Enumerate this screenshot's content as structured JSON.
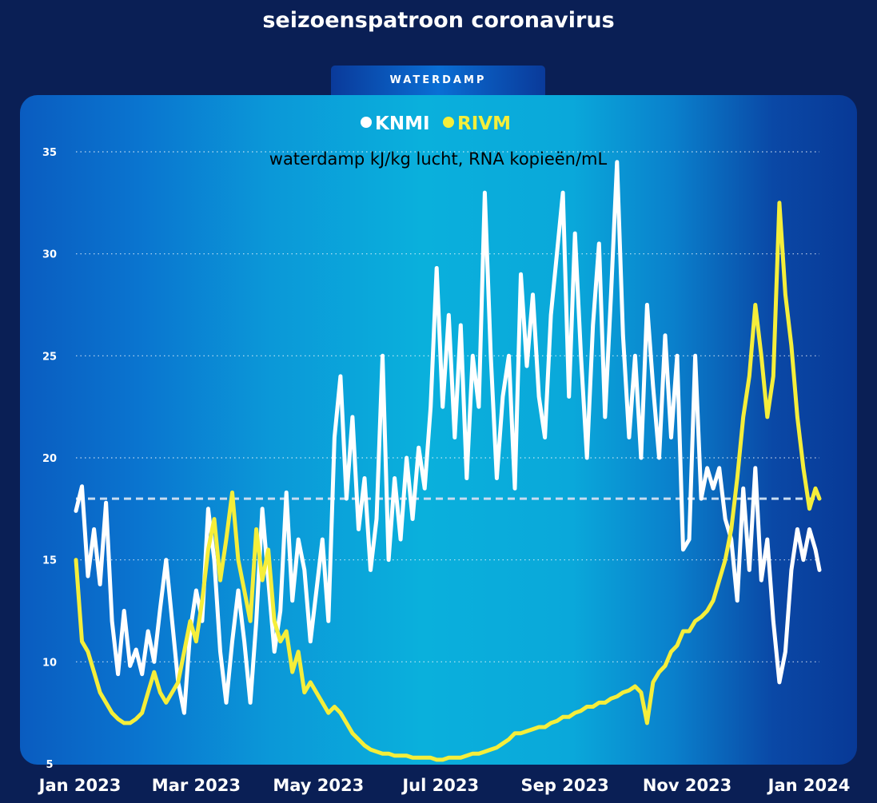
{
  "title": "seizoenspatroon coronavirus",
  "tab_label": "WATERDAMP",
  "colors": {
    "page_bg": "#0a1f55",
    "knmi": "#ffffff",
    "rivm": "#f5ee3a",
    "reference_line": "#c8dcf0"
  },
  "chart_data": {
    "type": "line",
    "subtitle": "waterdamp kJ/kg lucht, RNA kopieën/mL",
    "ylim": [
      5,
      35
    ],
    "y_ticks": [
      "5",
      "10",
      "15",
      "20",
      "25",
      "30",
      "35"
    ],
    "x_tick_labels": [
      "Jan 2023",
      "Mar 2023",
      "May 2023",
      "Jul 2023",
      "Sep 2023",
      "Nov 2023",
      "Jan 2024"
    ],
    "x_tick_dates": [
      "2023-01-01",
      "2023-03-01",
      "2023-05-01",
      "2023-07-01",
      "2023-09-01",
      "2023-11-01",
      "2024-01-01"
    ],
    "x_range": [
      "2022-12-31",
      "2024-01-06"
    ],
    "grid": true,
    "legend_position": "top-center",
    "reference_line": 18,
    "series": [
      {
        "name": "KNMI",
        "color": "#ffffff",
        "points": [
          [
            "2022-12-31",
            17.4
          ],
          [
            "2023-01-03",
            18.6
          ],
          [
            "2023-01-06",
            14.2
          ],
          [
            "2023-01-09",
            16.5
          ],
          [
            "2023-01-12",
            13.8
          ],
          [
            "2023-01-15",
            17.8
          ],
          [
            "2023-01-18",
            12.0
          ],
          [
            "2023-01-21",
            9.4
          ],
          [
            "2023-01-24",
            12.5
          ],
          [
            "2023-01-27",
            9.8
          ],
          [
            "2023-01-30",
            10.6
          ],
          [
            "2023-02-02",
            9.4
          ],
          [
            "2023-02-05",
            11.5
          ],
          [
            "2023-02-08",
            10.0
          ],
          [
            "2023-02-11",
            12.6
          ],
          [
            "2023-02-14",
            15.0
          ],
          [
            "2023-02-17",
            12.0
          ],
          [
            "2023-02-20",
            9.0
          ],
          [
            "2023-02-23",
            7.5
          ],
          [
            "2023-02-26",
            11.5
          ],
          [
            "2023-03-01",
            13.5
          ],
          [
            "2023-03-04",
            12.0
          ],
          [
            "2023-03-07",
            17.5
          ],
          [
            "2023-03-10",
            15.0
          ],
          [
            "2023-03-13",
            10.5
          ],
          [
            "2023-03-16",
            8.0
          ],
          [
            "2023-03-19",
            11.0
          ],
          [
            "2023-03-22",
            13.5
          ],
          [
            "2023-03-25",
            11.0
          ],
          [
            "2023-03-28",
            8.0
          ],
          [
            "2023-03-31",
            12.0
          ],
          [
            "2023-04-03",
            17.5
          ],
          [
            "2023-04-06",
            14.0
          ],
          [
            "2023-04-09",
            10.5
          ],
          [
            "2023-04-12",
            12.5
          ],
          [
            "2023-04-15",
            18.3
          ],
          [
            "2023-04-18",
            13.0
          ],
          [
            "2023-04-21",
            16.0
          ],
          [
            "2023-04-24",
            14.5
          ],
          [
            "2023-04-27",
            11.0
          ],
          [
            "2023-04-30",
            13.5
          ],
          [
            "2023-05-03",
            16.0
          ],
          [
            "2023-05-06",
            12.0
          ],
          [
            "2023-05-09",
            21.0
          ],
          [
            "2023-05-12",
            24.0
          ],
          [
            "2023-05-15",
            18.0
          ],
          [
            "2023-05-18",
            22.0
          ],
          [
            "2023-05-21",
            16.5
          ],
          [
            "2023-05-24",
            19.0
          ],
          [
            "2023-05-27",
            14.5
          ],
          [
            "2023-05-30",
            17.0
          ],
          [
            "2023-06-02",
            25.0
          ],
          [
            "2023-06-05",
            15.0
          ],
          [
            "2023-06-08",
            19.0
          ],
          [
            "2023-06-11",
            16.0
          ],
          [
            "2023-06-14",
            20.0
          ],
          [
            "2023-06-17",
            17.0
          ],
          [
            "2023-06-20",
            20.5
          ],
          [
            "2023-06-23",
            18.5
          ],
          [
            "2023-06-26",
            22.5
          ],
          [
            "2023-06-29",
            29.3
          ],
          [
            "2023-07-02",
            22.5
          ],
          [
            "2023-07-05",
            27.0
          ],
          [
            "2023-07-08",
            21.0
          ],
          [
            "2023-07-11",
            26.5
          ],
          [
            "2023-07-14",
            19.0
          ],
          [
            "2023-07-17",
            25.0
          ],
          [
            "2023-07-20",
            22.5
          ],
          [
            "2023-07-23",
            33.0
          ],
          [
            "2023-07-26",
            25.0
          ],
          [
            "2023-07-29",
            19.0
          ],
          [
            "2023-08-01",
            23.0
          ],
          [
            "2023-08-04",
            25.0
          ],
          [
            "2023-08-07",
            18.5
          ],
          [
            "2023-08-10",
            29.0
          ],
          [
            "2023-08-13",
            24.5
          ],
          [
            "2023-08-16",
            28.0
          ],
          [
            "2023-08-19",
            23.0
          ],
          [
            "2023-08-22",
            21.0
          ],
          [
            "2023-08-25",
            27.0
          ],
          [
            "2023-08-28",
            30.0
          ],
          [
            "2023-08-31",
            33.0
          ],
          [
            "2023-09-03",
            23.0
          ],
          [
            "2023-09-06",
            31.0
          ],
          [
            "2023-09-09",
            25.0
          ],
          [
            "2023-09-12",
            20.0
          ],
          [
            "2023-09-15",
            26.5
          ],
          [
            "2023-09-18",
            30.5
          ],
          [
            "2023-09-21",
            22.0
          ],
          [
            "2023-09-24",
            28.0
          ],
          [
            "2023-09-27",
            34.5
          ],
          [
            "2023-09-30",
            26.0
          ],
          [
            "2023-10-03",
            21.0
          ],
          [
            "2023-10-06",
            25.0
          ],
          [
            "2023-10-09",
            20.0
          ],
          [
            "2023-10-12",
            27.5
          ],
          [
            "2023-10-15",
            23.5
          ],
          [
            "2023-10-18",
            20.0
          ],
          [
            "2023-10-21",
            26.0
          ],
          [
            "2023-10-24",
            21.0
          ],
          [
            "2023-10-27",
            25.0
          ],
          [
            "2023-10-30",
            15.5
          ],
          [
            "2023-11-02",
            16.0
          ],
          [
            "2023-11-05",
            25.0
          ],
          [
            "2023-11-08",
            18.0
          ],
          [
            "2023-11-11",
            19.5
          ],
          [
            "2023-11-14",
            18.5
          ],
          [
            "2023-11-17",
            19.5
          ],
          [
            "2023-11-20",
            17.0
          ],
          [
            "2023-11-23",
            16.0
          ],
          [
            "2023-11-26",
            13.0
          ],
          [
            "2023-11-29",
            18.5
          ],
          [
            "2023-12-02",
            14.5
          ],
          [
            "2023-12-05",
            19.5
          ],
          [
            "2023-12-08",
            14.0
          ],
          [
            "2023-12-11",
            16.0
          ],
          [
            "2023-12-14",
            12.0
          ],
          [
            "2023-12-17",
            9.0
          ],
          [
            "2023-12-20",
            10.5
          ],
          [
            "2023-12-23",
            14.5
          ],
          [
            "2023-12-26",
            16.5
          ],
          [
            "2023-12-29",
            15.0
          ],
          [
            "2024-01-01",
            16.5
          ],
          [
            "2024-01-04",
            15.5
          ],
          [
            "2024-01-06",
            14.5
          ]
        ]
      },
      {
        "name": "RIVM",
        "color": "#f5ee3a",
        "points": [
          [
            "2022-12-31",
            15.0
          ],
          [
            "2023-01-03",
            11.0
          ],
          [
            "2023-01-06",
            10.5
          ],
          [
            "2023-01-09",
            9.5
          ],
          [
            "2023-01-12",
            8.5
          ],
          [
            "2023-01-15",
            8.0
          ],
          [
            "2023-01-18",
            7.5
          ],
          [
            "2023-01-21",
            7.2
          ],
          [
            "2023-01-24",
            7.0
          ],
          [
            "2023-01-27",
            7.0
          ],
          [
            "2023-01-30",
            7.2
          ],
          [
            "2023-02-02",
            7.5
          ],
          [
            "2023-02-05",
            8.5
          ],
          [
            "2023-02-08",
            9.5
          ],
          [
            "2023-02-11",
            8.5
          ],
          [
            "2023-02-14",
            8.0
          ],
          [
            "2023-02-17",
            8.5
          ],
          [
            "2023-02-20",
            9.0
          ],
          [
            "2023-02-23",
            10.5
          ],
          [
            "2023-02-26",
            12.0
          ],
          [
            "2023-03-01",
            11.0
          ],
          [
            "2023-03-04",
            13.0
          ],
          [
            "2023-03-07",
            15.5
          ],
          [
            "2023-03-10",
            17.0
          ],
          [
            "2023-03-13",
            14.0
          ],
          [
            "2023-03-16",
            16.0
          ],
          [
            "2023-03-19",
            18.3
          ],
          [
            "2023-03-22",
            15.0
          ],
          [
            "2023-03-25",
            13.5
          ],
          [
            "2023-03-28",
            12.0
          ],
          [
            "2023-03-31",
            16.5
          ],
          [
            "2023-04-03",
            14.0
          ],
          [
            "2023-04-06",
            15.5
          ],
          [
            "2023-04-09",
            12.0
          ],
          [
            "2023-04-12",
            11.0
          ],
          [
            "2023-04-15",
            11.5
          ],
          [
            "2023-04-18",
            9.5
          ],
          [
            "2023-04-21",
            10.5
          ],
          [
            "2023-04-24",
            8.5
          ],
          [
            "2023-04-27",
            9.0
          ],
          [
            "2023-04-30",
            8.5
          ],
          [
            "2023-05-03",
            8.0
          ],
          [
            "2023-05-06",
            7.5
          ],
          [
            "2023-05-09",
            7.8
          ],
          [
            "2023-05-12",
            7.5
          ],
          [
            "2023-05-15",
            7.0
          ],
          [
            "2023-05-18",
            6.5
          ],
          [
            "2023-05-21",
            6.2
          ],
          [
            "2023-05-24",
            5.9
          ],
          [
            "2023-05-27",
            5.7
          ],
          [
            "2023-05-30",
            5.6
          ],
          [
            "2023-06-02",
            5.5
          ],
          [
            "2023-06-05",
            5.5
          ],
          [
            "2023-06-08",
            5.4
          ],
          [
            "2023-06-11",
            5.4
          ],
          [
            "2023-06-14",
            5.4
          ],
          [
            "2023-06-17",
            5.3
          ],
          [
            "2023-06-20",
            5.3
          ],
          [
            "2023-06-23",
            5.3
          ],
          [
            "2023-06-26",
            5.3
          ],
          [
            "2023-06-29",
            5.2
          ],
          [
            "2023-07-02",
            5.2
          ],
          [
            "2023-07-05",
            5.3
          ],
          [
            "2023-07-08",
            5.3
          ],
          [
            "2023-07-11",
            5.3
          ],
          [
            "2023-07-14",
            5.4
          ],
          [
            "2023-07-17",
            5.5
          ],
          [
            "2023-07-20",
            5.5
          ],
          [
            "2023-07-23",
            5.6
          ],
          [
            "2023-07-26",
            5.7
          ],
          [
            "2023-07-29",
            5.8
          ],
          [
            "2023-08-01",
            6.0
          ],
          [
            "2023-08-04",
            6.2
          ],
          [
            "2023-08-07",
            6.5
          ],
          [
            "2023-08-10",
            6.5
          ],
          [
            "2023-08-13",
            6.6
          ],
          [
            "2023-08-16",
            6.7
          ],
          [
            "2023-08-19",
            6.8
          ],
          [
            "2023-08-22",
            6.8
          ],
          [
            "2023-08-25",
            7.0
          ],
          [
            "2023-08-28",
            7.1
          ],
          [
            "2023-08-31",
            7.3
          ],
          [
            "2023-09-03",
            7.3
          ],
          [
            "2023-09-06",
            7.5
          ],
          [
            "2023-09-09",
            7.6
          ],
          [
            "2023-09-12",
            7.8
          ],
          [
            "2023-09-15",
            7.8
          ],
          [
            "2023-09-18",
            8.0
          ],
          [
            "2023-09-21",
            8.0
          ],
          [
            "2023-09-24",
            8.2
          ],
          [
            "2023-09-27",
            8.3
          ],
          [
            "2023-09-30",
            8.5
          ],
          [
            "2023-10-03",
            8.6
          ],
          [
            "2023-10-06",
            8.8
          ],
          [
            "2023-10-09",
            8.5
          ],
          [
            "2023-10-12",
            7.0
          ],
          [
            "2023-10-15",
            9.0
          ],
          [
            "2023-10-18",
            9.5
          ],
          [
            "2023-10-21",
            9.8
          ],
          [
            "2023-10-24",
            10.5
          ],
          [
            "2023-10-27",
            10.8
          ],
          [
            "2023-10-30",
            11.5
          ],
          [
            "2023-11-02",
            11.5
          ],
          [
            "2023-11-05",
            12.0
          ],
          [
            "2023-11-08",
            12.2
          ],
          [
            "2023-11-11",
            12.5
          ],
          [
            "2023-11-14",
            13.0
          ],
          [
            "2023-11-17",
            14.0
          ],
          [
            "2023-11-20",
            15.0
          ],
          [
            "2023-11-23",
            16.5
          ],
          [
            "2023-11-26",
            19.0
          ],
          [
            "2023-11-29",
            22.0
          ],
          [
            "2023-12-02",
            24.0
          ],
          [
            "2023-12-05",
            27.5
          ],
          [
            "2023-12-08",
            25.0
          ],
          [
            "2023-12-11",
            22.0
          ],
          [
            "2023-12-14",
            24.0
          ],
          [
            "2023-12-17",
            32.5
          ],
          [
            "2023-12-20",
            28.0
          ],
          [
            "2023-12-23",
            25.5
          ],
          [
            "2023-12-26",
            22.0
          ],
          [
            "2023-12-29",
            19.5
          ],
          [
            "2024-01-01",
            17.5
          ],
          [
            "2024-01-04",
            18.5
          ],
          [
            "2024-01-06",
            18.0
          ]
        ]
      }
    ]
  }
}
